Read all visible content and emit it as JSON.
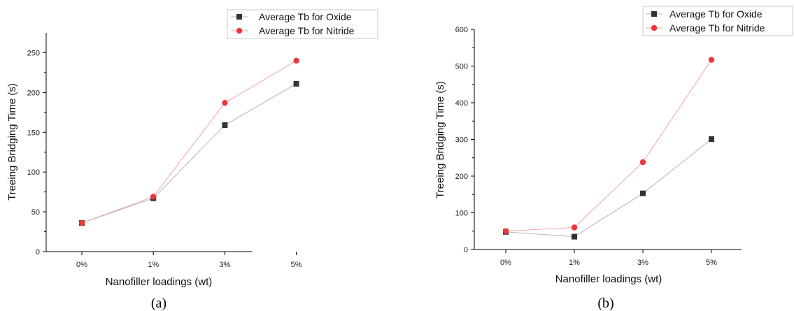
{
  "chart_data": [
    {
      "type": "line",
      "caption": "(a)",
      "categories": [
        "0%",
        "1%",
        "3%",
        "5%"
      ],
      "xlabel": "Nanofiller loadings (wt)",
      "ylabel": "Treeing Bridging Time (s)",
      "ylim": [
        0,
        275
      ],
      "yticks": [
        0,
        50,
        100,
        150,
        200,
        250
      ],
      "legend": "top-right",
      "grid": false,
      "series": [
        {
          "name": "Average Tb for Oxide",
          "marker": "square",
          "color": "#333333",
          "line_color": "#b5b5b5",
          "values": [
            36,
            67,
            159,
            211
          ]
        },
        {
          "name": "Average Tb for Nitride",
          "marker": "circle",
          "color": "#e8383d",
          "line_color": "#f2a6a6",
          "values": [
            36,
            69,
            187,
            240
          ]
        }
      ]
    },
    {
      "type": "line",
      "caption": "(b)",
      "categories": [
        "0%",
        "1%",
        "3%",
        "5%"
      ],
      "xlabel": "Nanofiller loadings (wt)",
      "ylabel": "Treeing Bridging Time (s)",
      "ylim": [
        0,
        600
      ],
      "yticks": [
        0,
        100,
        200,
        300,
        400,
        500,
        600
      ],
      "legend": "top-right",
      "grid": false,
      "series": [
        {
          "name": "Average Tb for Oxide",
          "marker": "square",
          "color": "#333333",
          "line_color": "#b5b5b5",
          "values": [
            48,
            35,
            153,
            301
          ]
        },
        {
          "name": "Average Tb for Nitride",
          "marker": "circle",
          "color": "#e8383d",
          "line_color": "#f2a6a6",
          "values": [
            50,
            60,
            238,
            517
          ]
        }
      ]
    }
  ]
}
